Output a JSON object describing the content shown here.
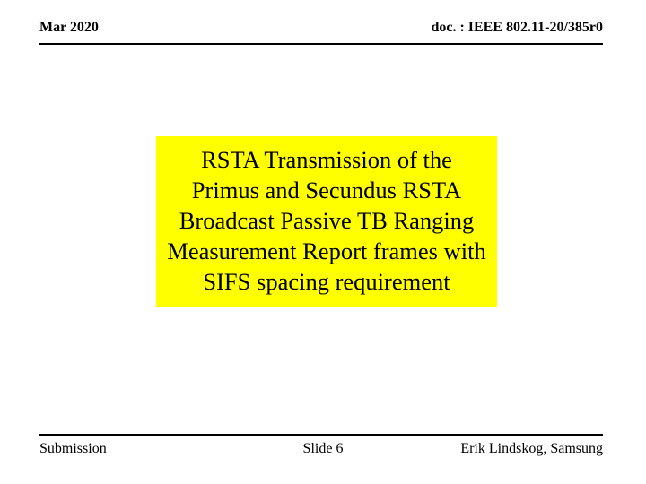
{
  "header": {
    "date": "Mar 2020",
    "doc": "doc. : IEEE 802.11-20/385r0"
  },
  "main": {
    "title": "RSTA Transmission of the Primus and Secundus RSTA Broadcast Passive TB Ranging Measurement Report frames with SIFS spacing requirement"
  },
  "footer": {
    "left": "Submission",
    "center": "Slide 6",
    "right": "Erik Lindskog, Samsung"
  },
  "colors": {
    "highlight": "#ffff00",
    "text": "#000000",
    "background": "#ffffff",
    "rule": "#000000"
  }
}
